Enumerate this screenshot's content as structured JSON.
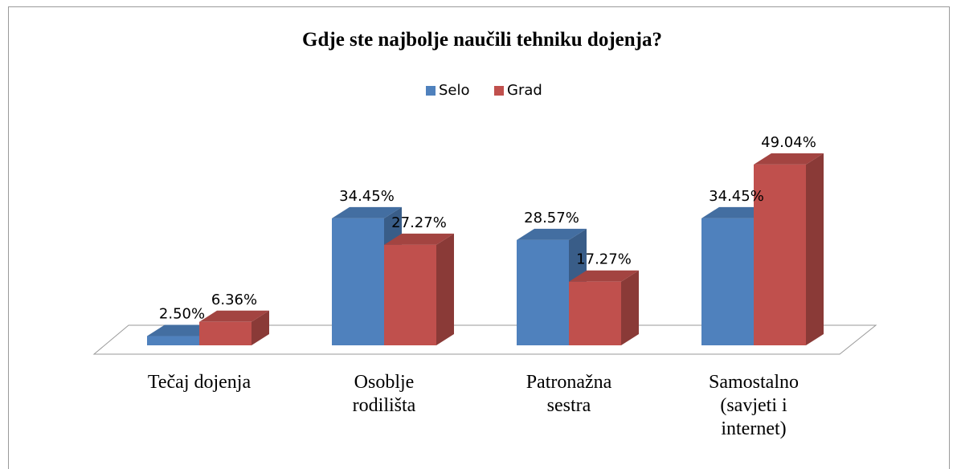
{
  "chart_data": {
    "type": "bar",
    "title": "Gdje ste najbolje naučili tehniku dojenja?",
    "categories": [
      "Tečaj dojenja",
      "Osoblje rodilišta",
      "Patronažna sestra",
      "Samostalno (savjeti i internet)"
    ],
    "series": [
      {
        "name": "Selo",
        "color": "#4f81bd",
        "values": [
          2.5,
          34.45,
          28.57,
          34.45
        ],
        "value_labels": [
          "2.50%",
          "34.45%",
          "28.57%",
          "34.45%"
        ]
      },
      {
        "name": "Grad",
        "color": "#c0504d",
        "values": [
          6.36,
          27.27,
          17.27,
          49.04
        ],
        "value_labels": [
          "6.36%",
          "27.27%",
          "17.27%",
          "49.04%"
        ]
      }
    ],
    "legend": "top"
  }
}
